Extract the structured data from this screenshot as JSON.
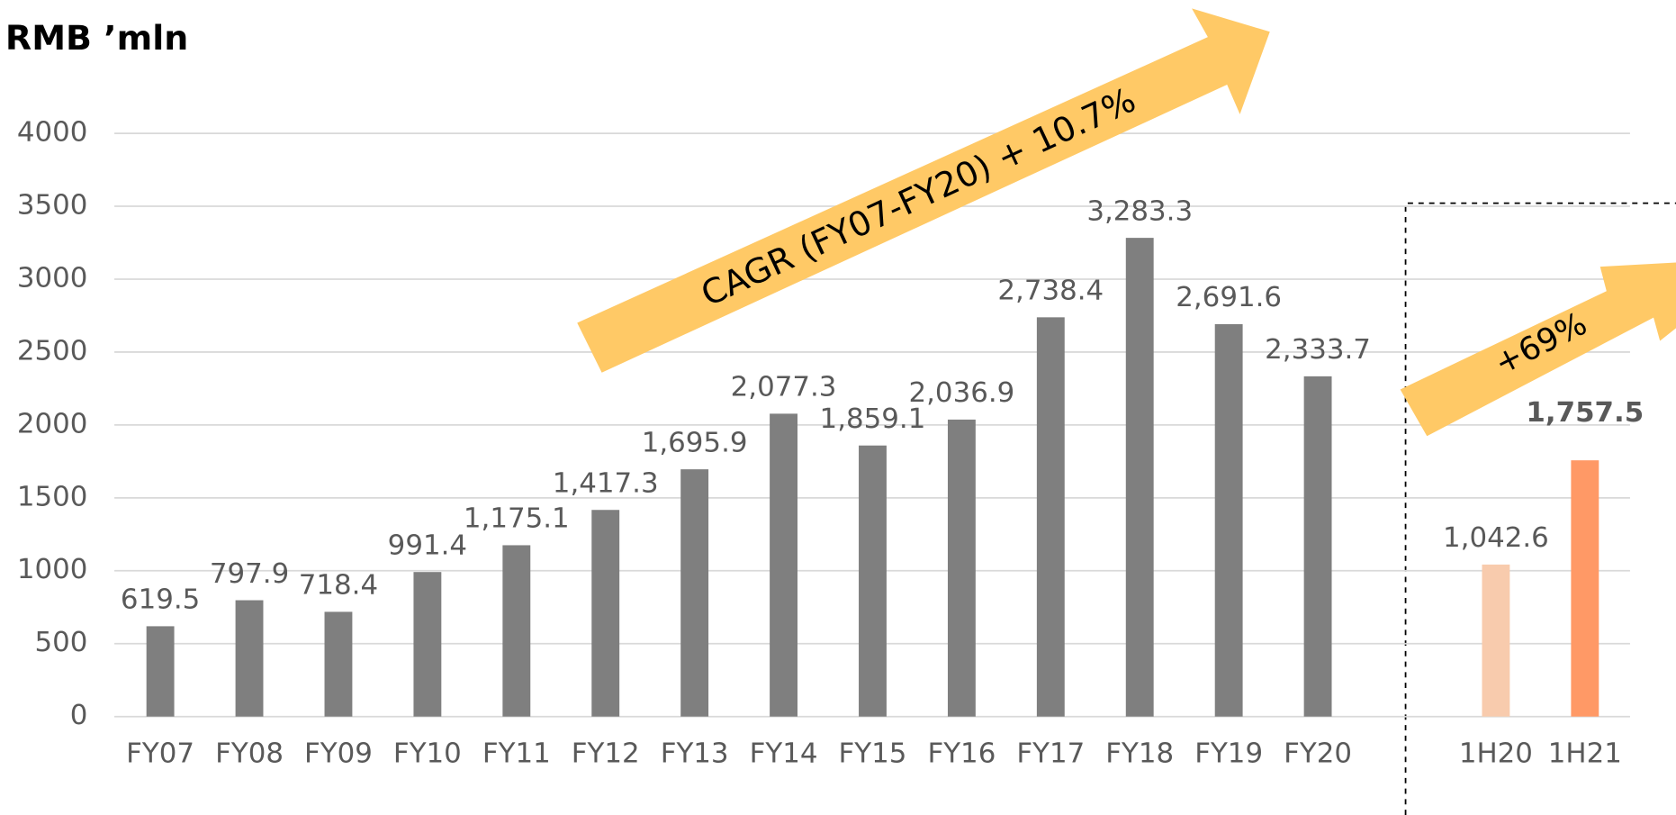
{
  "chart_data": {
    "type": "bar",
    "title": "RMB ’mln",
    "categories": [
      "FY07",
      "FY08",
      "FY09",
      "FY10",
      "FY11",
      "FY12",
      "FY13",
      "FY14",
      "FY15",
      "FY16",
      "FY17",
      "FY18",
      "FY19",
      "FY20",
      null,
      "1H20",
      "1H21"
    ],
    "values": [
      619.5,
      797.9,
      718.4,
      991.4,
      1175.1,
      1417.3,
      1695.9,
      2077.3,
      1859.1,
      2036.9,
      2738.4,
      3283.3,
      2691.6,
      2333.7,
      null,
      1042.6,
      1757.5
    ],
    "value_labels": [
      "619.5",
      "797.9",
      "718.4",
      "991.4",
      "1,175.1",
      "1,417.3",
      "1,695.9",
      "2,077.3",
      "1,859.1",
      "2,036.9",
      "2,738.4",
      "3,283.3",
      "2,691.6",
      "2,333.7",
      null,
      "1,042.6",
      "1,757.5"
    ],
    "colors": [
      "#7f7f7f",
      "#7f7f7f",
      "#7f7f7f",
      "#7f7f7f",
      "#7f7f7f",
      "#7f7f7f",
      "#7f7f7f",
      "#7f7f7f",
      "#7f7f7f",
      "#7f7f7f",
      "#7f7f7f",
      "#7f7f7f",
      "#7f7f7f",
      "#7f7f7f",
      null,
      "#f8cbad",
      "#ff9966"
    ],
    "ylim": [
      0,
      4000
    ],
    "yticks": [
      0,
      500,
      1000,
      1500,
      2000,
      2500,
      3000,
      3500,
      4000
    ],
    "grid": true,
    "annotations": [
      "CAGR (FY07-FY20)  + 10.7%",
      "+69%"
    ]
  }
}
